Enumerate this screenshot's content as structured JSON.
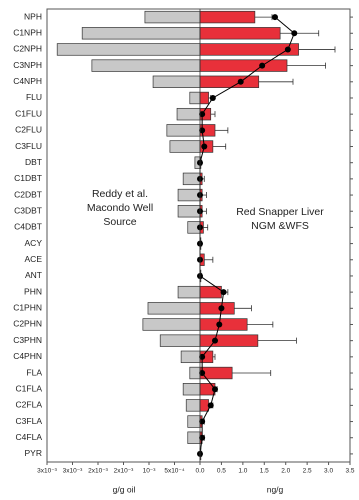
{
  "chart_data": {
    "type": "bar",
    "categories": [
      "NPH",
      "C1NPH",
      "C2NPH",
      "C3NPH",
      "C4NPH",
      "FLU",
      "C1FLU",
      "C2FLU",
      "C3FLU",
      "DBT",
      "C1DBT",
      "C2DBT",
      "C3DBT",
      "C4DBT",
      "ACY",
      "ACE",
      "ANT",
      "PHN",
      "C1PHN",
      "C2PHN",
      "C3PHN",
      "C4PHN",
      "FLA",
      "C1FLA",
      "C2FLA",
      "C3FLA",
      "C4FLA",
      "PYR"
    ],
    "x2lim": [
      0.003,
      0
    ],
    "x2ticks": [
      {
        "value": 0.003,
        "label": "3x10⁻³"
      },
      {
        "value": 0.0025,
        "label": "3x10⁻³"
      },
      {
        "value": 0.002,
        "label": "2x10⁻³"
      },
      {
        "value": 0.0015,
        "label": "2x10⁻³"
      },
      {
        "value": 0.001,
        "label": "10⁻³"
      },
      {
        "value": 0.0005,
        "label": "5x10⁻⁴"
      },
      {
        "value": 0,
        "label": "0.0"
      }
    ],
    "x2label": "g/g oil",
    "xlim": [
      0,
      3.5
    ],
    "xticks": [
      {
        "value": 0.5,
        "label": "0.5"
      },
      {
        "value": 1,
        "label": "1.0"
      },
      {
        "value": 1.5,
        "label": "1.5"
      },
      {
        "value": 2,
        "label": "2.0"
      },
      {
        "value": 2.5,
        "label": "2.5"
      },
      {
        "value": 3,
        "label": "3.0"
      },
      {
        "value": 3.5,
        "label": "3.5"
      }
    ],
    "xlabel": "ng/g",
    "annotations": [
      [
        "Reddy et al.",
        "Macondo Well",
        "Source"
      ],
      [
        "Red Snapper  Liver",
        "NGM &WFS"
      ]
    ],
    "series": [
      {
        "type": "bar",
        "axis": "x2",
        "color": "#c8c8c8",
        "values": [
          0.00108,
          0.00231,
          0.0028,
          0.00212,
          0.00092,
          0.0002,
          0.00045,
          0.00065,
          0.00059,
          0.0001,
          0.00033,
          0.00043,
          0.00043,
          0.00024,
          0,
          0,
          0,
          0.00043,
          0.00102,
          0.00112,
          0.00078,
          0.00037,
          0.0002,
          0.00033,
          0.00027,
          0.00024,
          0.00024,
          0
        ]
      },
      {
        "type": "bar",
        "color": "#e8303a",
        "values": [
          1.28,
          1.87,
          2.3,
          2.03,
          1.37,
          0.2,
          0.25,
          0.35,
          0.3,
          0.02,
          0.05,
          0.05,
          0.05,
          0.08,
          0.02,
          0.1,
          0.02,
          0.5,
          0.8,
          1.1,
          1.35,
          0.3,
          0.75,
          0.35,
          0.2,
          0.05,
          0.05,
          0.02
        ],
        "errors": [
          0.4,
          0.9,
          0.85,
          0.9,
          0.8,
          0.05,
          0.1,
          0.3,
          0.3,
          0.02,
          0.05,
          0.1,
          0.1,
          0.1,
          0.02,
          0.2,
          0.02,
          0.15,
          0.4,
          0.6,
          0.9,
          0.05,
          0.9,
          0.05,
          0.1,
          0.05,
          0.05,
          0.02
        ]
      },
      {
        "type": "line",
        "color": "#000000",
        "values": [
          1.75,
          2.2,
          2.05,
          1.45,
          0.95,
          0.3,
          0.05,
          0.05,
          0.1,
          0,
          0,
          0,
          0,
          0,
          0,
          0,
          0,
          0.55,
          0.5,
          0.45,
          0.35,
          0.05,
          0.05,
          0.35,
          0.25,
          0.05,
          0.05,
          0
        ]
      }
    ]
  }
}
